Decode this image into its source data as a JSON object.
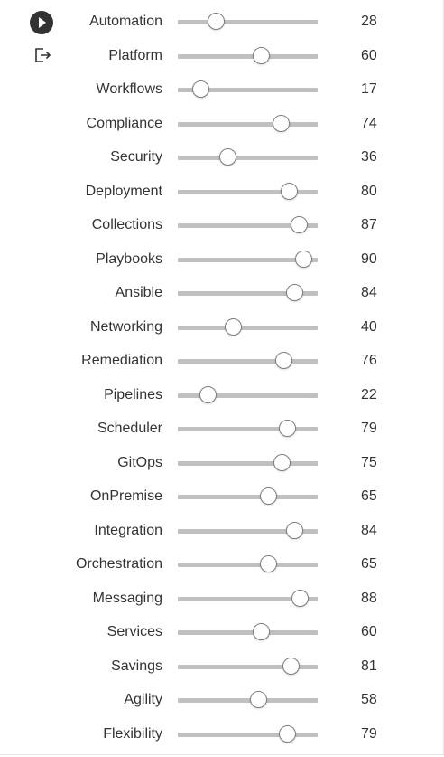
{
  "icons": {
    "play": "play-icon",
    "exit": "exit-icon"
  },
  "colors": {
    "text": "#333333",
    "track": "#c0c0c0",
    "thumb_border": "#7d7d7d"
  },
  "sliders": [
    {
      "label": "Automation",
      "value": 28
    },
    {
      "label": "Platform",
      "value": 60
    },
    {
      "label": "Workflows",
      "value": 17
    },
    {
      "label": "Compliance",
      "value": 74
    },
    {
      "label": "Security",
      "value": 36
    },
    {
      "label": "Deployment",
      "value": 80
    },
    {
      "label": "Collections",
      "value": 87
    },
    {
      "label": "Playbooks",
      "value": 90
    },
    {
      "label": "Ansible",
      "value": 84
    },
    {
      "label": "Networking",
      "value": 40
    },
    {
      "label": "Remediation",
      "value": 76
    },
    {
      "label": "Pipelines",
      "value": 22
    },
    {
      "label": "Scheduler",
      "value": 79
    },
    {
      "label": "GitOps",
      "value": 75
    },
    {
      "label": "OnPremise",
      "value": 65
    },
    {
      "label": "Integration",
      "value": 84
    },
    {
      "label": "Orchestration",
      "value": 65
    },
    {
      "label": "Messaging",
      "value": 88
    },
    {
      "label": "Services",
      "value": 60
    },
    {
      "label": "Savings",
      "value": 81
    },
    {
      "label": "Agility",
      "value": 58
    },
    {
      "label": "Flexibility",
      "value": 79
    }
  ]
}
